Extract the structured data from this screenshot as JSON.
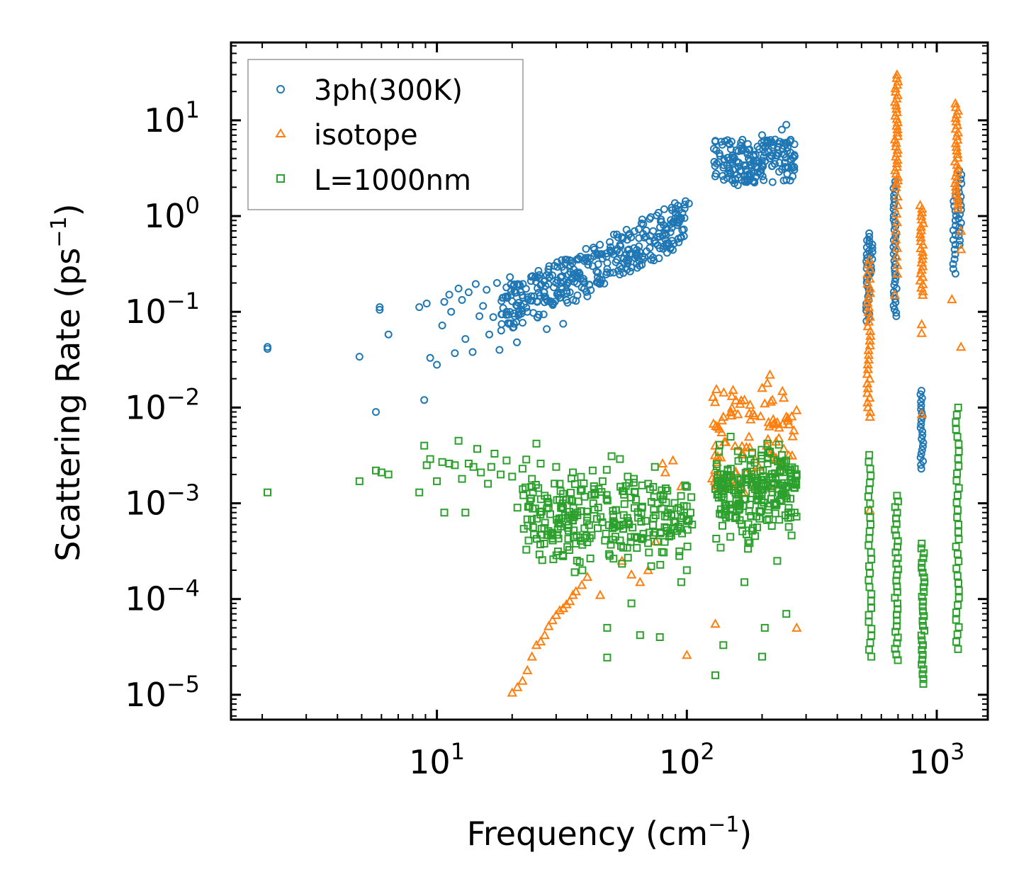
{
  "chart_data": {
    "type": "scatter",
    "title": "",
    "xlabel": "Frequency (cm",
    "xlabel_sup": "−1",
    "xlabel_end": ")",
    "ylabel": "Scattering Rate (ps",
    "ylabel_sup": "−1",
    "ylabel_end": ")",
    "xscale": "log",
    "yscale": "log",
    "xlim": [
      1.5,
      1600
    ],
    "ylim": [
      5.5e-06,
      65
    ],
    "grid": false,
    "legend_position": "top-left",
    "x_ticks": [
      {
        "value": 10,
        "base": "10",
        "exp": "1"
      },
      {
        "value": 100,
        "base": "10",
        "exp": "2"
      },
      {
        "value": 1000,
        "base": "10",
        "exp": "3"
      }
    ],
    "y_ticks": [
      {
        "value": 10,
        "base": "10",
        "exp": "1"
      },
      {
        "value": 1,
        "base": "10",
        "exp": "0"
      },
      {
        "value": 0.1,
        "base": "10",
        "exp": "−1"
      },
      {
        "value": 0.01,
        "base": "10",
        "exp": "−2"
      },
      {
        "value": 0.001,
        "base": "10",
        "exp": "−3"
      },
      {
        "value": 0.0001,
        "base": "10",
        "exp": "−4"
      },
      {
        "value": 1e-05,
        "base": "10",
        "exp": "−5"
      }
    ],
    "series": [
      {
        "name": "3ph(300K)",
        "marker": "circle",
        "color": "#1f77b4",
        "points": [
          [
            2.1,
            0.043
          ],
          [
            2.1,
            0.041
          ],
          [
            4.9,
            0.034
          ],
          [
            5.7,
            0.009
          ],
          [
            5.9,
            0.112
          ],
          [
            5.9,
            0.105
          ],
          [
            6.4,
            0.058
          ],
          [
            8.5,
            0.112
          ],
          [
            8.9,
            0.012
          ],
          [
            9.1,
            0.122
          ],
          [
            9.4,
            0.033
          ],
          [
            10,
            0.028
          ],
          [
            10.5,
            0.072
          ],
          [
            10.7,
            0.127
          ],
          [
            11.2,
            0.151
          ],
          [
            11.4,
            0.1
          ],
          [
            11.8,
            0.037
          ],
          [
            12.2,
            0.175
          ],
          [
            12.6,
            0.133
          ],
          [
            13,
            0.052
          ],
          [
            13.4,
            0.16
          ],
          [
            13.9,
            0.038
          ],
          [
            14.3,
            0.195
          ],
          [
            14.8,
            0.09
          ],
          [
            15.3,
            0.115
          ],
          [
            15.8,
            0.17
          ],
          [
            16.2,
            0.058
          ],
          [
            16.8,
            0.088
          ],
          [
            17.4,
            0.2
          ],
          [
            17.8,
            0.04
          ],
          [
            18.3,
            0.14
          ],
          [
            19,
            0.1
          ],
          [
            19.6,
            0.23
          ],
          [
            20.3,
            0.075
          ],
          [
            20.9,
            0.048
          ],
          [
            21.5,
            0.19
          ],
          [
            22.3,
            0.12
          ],
          [
            23,
            0.1
          ],
          [
            23.8,
            0.21
          ],
          [
            24.5,
            0.145
          ],
          [
            25.2,
            0.088
          ],
          [
            26,
            0.19
          ],
          [
            26.8,
            0.16
          ],
          [
            27.5,
            0.066
          ],
          [
            28.3,
            0.23
          ],
          [
            29,
            0.12
          ],
          [
            30,
            0.2
          ],
          [
            31,
            0.14
          ],
          [
            32,
            0.075
          ],
          [
            33,
            0.19
          ],
          [
            34,
            0.16
          ],
          [
            35,
            0.22
          ],
          [
            36,
            0.13
          ],
          [
            37,
            0.25
          ],
          [
            38,
            0.18
          ],
          [
            39,
            0.2
          ],
          [
            40,
            0.145
          ],
          [
            42,
            0.3
          ],
          [
            44,
            0.23
          ],
          [
            46,
            0.36
          ],
          [
            48,
            0.28
          ],
          [
            50,
            0.42
          ],
          [
            52,
            0.33
          ],
          [
            54,
            0.5
          ],
          [
            56,
            0.36
          ],
          [
            58,
            0.44
          ],
          [
            60,
            0.29
          ],
          [
            63,
            0.38
          ],
          [
            66,
            0.31
          ],
          [
            69,
            0.43
          ],
          [
            72,
            0.35
          ],
          [
            75,
            0.52
          ],
          [
            78,
            0.46
          ],
          [
            80,
            0.62
          ],
          [
            83,
            0.75
          ],
          [
            86,
            0.68
          ],
          [
            89,
            0.86
          ],
          [
            92,
            1.0
          ],
          [
            95,
            0.95
          ],
          [
            98,
            1.2
          ],
          [
            102,
            1.35
          ],
          [
            130,
            6.0
          ],
          [
            135,
            4.5
          ],
          [
            140,
            3.2
          ],
          [
            145,
            2.5
          ],
          [
            150,
            2.8
          ],
          [
            155,
            2.2
          ],
          [
            160,
            2.1
          ],
          [
            165,
            3.0
          ],
          [
            170,
            2.6
          ],
          [
            175,
            2.4
          ],
          [
            180,
            3.4
          ],
          [
            185,
            4.2
          ],
          [
            190,
            3.8
          ],
          [
            195,
            5.0
          ],
          [
            200,
            7.0
          ],
          [
            205,
            4.6
          ],
          [
            210,
            5.8
          ],
          [
            215,
            4.0
          ],
          [
            220,
            5.2
          ],
          [
            225,
            3.5
          ],
          [
            230,
            4.3
          ],
          [
            235,
            6.0
          ],
          [
            240,
            8.0
          ],
          [
            245,
            5.4
          ],
          [
            250,
            9.0
          ],
          [
            255,
            3.2
          ],
          [
            260,
            4.6
          ],
          [
            265,
            2.6
          ],
          [
            270,
            4.2
          ]
        ],
        "stacks": [
          {
            "x": 530,
            "ymin": 0.08,
            "ymax": 0.66,
            "count": 26
          },
          {
            "x": 545,
            "ymin": 0.25,
            "ymax": 0.55,
            "count": 10
          },
          {
            "x": 680,
            "ymin": 0.09,
            "ymax": 2.3,
            "count": 40
          },
          {
            "x": 870,
            "ymin": 0.0023,
            "ymax": 0.015,
            "count": 22
          },
          {
            "x": 1180,
            "ymin": 0.25,
            "ymax": 1.8,
            "count": 18
          },
          {
            "x": 1240,
            "ymin": 0.5,
            "ymax": 3.0,
            "count": 18
          }
        ]
      },
      {
        "name": "isotope",
        "marker": "triangle",
        "color": "#ff7f0e",
        "points": [
          [
            20,
            1.05e-05
          ],
          [
            21,
            1.2e-05
          ],
          [
            22,
            1.4e-05
          ],
          [
            23,
            1.8e-05
          ],
          [
            24,
            2.5e-05
          ],
          [
            25,
            3.3e-05
          ],
          [
            26,
            3.6e-05
          ],
          [
            27,
            4.2e-05
          ],
          [
            28,
            5.2e-05
          ],
          [
            29,
            6e-05
          ],
          [
            30,
            6.8e-05
          ],
          [
            31,
            7.6e-05
          ],
          [
            32,
            8e-05
          ],
          [
            33,
            8.8e-05
          ],
          [
            34,
            9.5e-05
          ],
          [
            35,
            0.00011
          ],
          [
            36,
            0.00012
          ],
          [
            38,
            0.00014
          ],
          [
            40,
            0.00017
          ],
          [
            45,
            0.00011
          ],
          [
            55,
            0.00025
          ],
          [
            60,
            0.00018
          ],
          [
            65,
            0.00015
          ],
          [
            70,
            0.0002
          ],
          [
            75,
            0.0004
          ],
          [
            80,
            0.0026
          ],
          [
            82,
            0.0021
          ],
          [
            88,
            0.0028
          ],
          [
            95,
            0.0015
          ],
          [
            100,
            2.6e-05
          ],
          [
            130,
            0.004
          ],
          [
            135,
            0.006
          ],
          [
            140,
            0.008
          ],
          [
            150,
            0.009
          ],
          [
            160,
            0.0085
          ],
          [
            170,
            0.012
          ],
          [
            180,
            0.0075
          ],
          [
            200,
            0.016
          ],
          [
            205,
            0.011
          ],
          [
            210,
            0.018
          ],
          [
            215,
            0.022
          ],
          [
            220,
            0.012
          ],
          [
            230,
            0.007
          ],
          [
            250,
            0.008
          ],
          [
            265,
            0.005
          ],
          [
            130,
            5.5e-05
          ],
          [
            275,
            5e-05
          ],
          [
            540,
            0.00085
          ],
          [
            540,
            0.05
          ],
          [
            680,
            0.15
          ],
          [
            870,
            0.074
          ],
          [
            870,
            0.06
          ],
          [
            870,
            0.0085
          ],
          [
            1150,
            0.135
          ],
          [
            1250,
            0.043
          ],
          [
            1250,
            0.45
          ],
          [
            1250,
            0.7
          ]
        ],
        "stacks": [
          {
            "x": 535,
            "ymin": 0.008,
            "ymax": 0.35,
            "count": 34
          },
          {
            "x": 690,
            "ymin": 2.0,
            "ymax": 30,
            "count": 34
          },
          {
            "x": 690,
            "ymin": 0.25,
            "ymax": 1.6,
            "count": 10
          },
          {
            "x": 870,
            "ymin": 0.15,
            "ymax": 1.3,
            "count": 26
          },
          {
            "x": 1200,
            "ymin": 1.2,
            "ymax": 15,
            "count": 30
          }
        ]
      },
      {
        "name": "L=1000nm",
        "marker": "square",
        "color": "#2ca02c",
        "points": [
          [
            2.1,
            0.0013
          ],
          [
            4.9,
            0.0017
          ],
          [
            5.7,
            0.0022
          ],
          [
            6.0,
            0.0021
          ],
          [
            6.4,
            0.002
          ],
          [
            8.5,
            0.0013
          ],
          [
            8.9,
            0.004
          ],
          [
            9.1,
            0.0025
          ],
          [
            9.4,
            0.0029
          ],
          [
            10,
            0.0017
          ],
          [
            10.5,
            0.0027
          ],
          [
            10.7,
            0.0008
          ],
          [
            11.2,
            0.0026
          ],
          [
            11.8,
            0.0025
          ],
          [
            12.2,
            0.0045
          ],
          [
            12.6,
            0.0018
          ],
          [
            13,
            0.0008
          ],
          [
            13.4,
            0.0026
          ],
          [
            14,
            0.0024
          ],
          [
            14.5,
            0.0037
          ],
          [
            15,
            0.0021
          ],
          [
            16,
            0.0016
          ],
          [
            16.5,
            0.0024
          ],
          [
            17,
            0.0033
          ],
          [
            18,
            0.002
          ],
          [
            19,
            0.0028
          ],
          [
            20,
            0.0019
          ],
          [
            21,
            0.0009
          ],
          [
            22,
            0.0023
          ],
          [
            23,
            0.00068
          ],
          [
            24,
            0.0018
          ],
          [
            25,
            0.0042
          ],
          [
            26,
            0.0026
          ],
          [
            27,
            0.0012
          ],
          [
            28,
            0.0009
          ],
          [
            29,
            0.00043
          ],
          [
            30,
            0.0024
          ],
          [
            31,
            0.0016
          ],
          [
            32,
            0.00028
          ],
          [
            33,
            0.0011
          ],
          [
            34,
            0.00071
          ],
          [
            35,
            0.0021
          ],
          [
            36,
            0.00038
          ],
          [
            38,
            0.0014
          ],
          [
            40,
            0.00072
          ],
          [
            42,
            0.0022
          ],
          [
            44,
            0.00055
          ],
          [
            46,
            0.0017
          ],
          [
            48,
            2.45e-05
          ],
          [
            48,
            5e-05
          ],
          [
            50,
            0.0031
          ],
          [
            52,
            0.00085
          ],
          [
            54,
            0.0029
          ],
          [
            56,
            0.0006
          ],
          [
            58,
            0.0019
          ],
          [
            60,
            9e-05
          ],
          [
            62,
            0.0013
          ],
          [
            65,
            4.2e-05
          ],
          [
            67,
            0.00048
          ],
          [
            70,
            0.0016
          ],
          [
            72,
            0.00022
          ],
          [
            75,
            0.00075
          ],
          [
            78,
            4e-05
          ],
          [
            80,
            0.0011
          ],
          [
            85,
            0.00045
          ],
          [
            90,
            0.00065
          ],
          [
            95,
            0.00015
          ],
          [
            100,
            0.0002
          ],
          [
            105,
            0.0006
          ],
          [
            130,
            1.6e-05
          ],
          [
            140,
            3.3e-05
          ],
          [
            150,
            0.0023
          ],
          [
            160,
            0.0035
          ],
          [
            170,
            0.00015
          ],
          [
            180,
            0.0028
          ],
          [
            190,
            0.0017
          ],
          [
            200,
            2.5e-05
          ],
          [
            205,
            5e-05
          ],
          [
            210,
            0.0042
          ],
          [
            220,
            0.0013
          ],
          [
            230,
            0.00025
          ],
          [
            240,
            0.0032
          ],
          [
            250,
            7e-05
          ],
          [
            260,
            0.0021
          ],
          [
            270,
            0.0008
          ]
        ],
        "stacks": [
          {
            "x": 540,
            "ymin": 2.5e-05,
            "ymax": 0.0032,
            "count": 30
          },
          {
            "x": 690,
            "ymin": 2.3e-05,
            "ymax": 0.0012,
            "count": 30
          },
          {
            "x": 880,
            "ymin": 1.3e-05,
            "ymax": 0.00038,
            "count": 30
          },
          {
            "x": 1210,
            "ymin": 3e-05,
            "ymax": 0.01,
            "count": 34
          }
        ],
        "clouds": [
          {
            "xmin": 22,
            "xmax": 105,
            "ymin": 5e-05,
            "ymax": 0.0032,
            "count": 260
          },
          {
            "xmin": 130,
            "xmax": 275,
            "ymin": 9e-05,
            "ymax": 0.006,
            "count": 220
          }
        ]
      }
    ]
  }
}
